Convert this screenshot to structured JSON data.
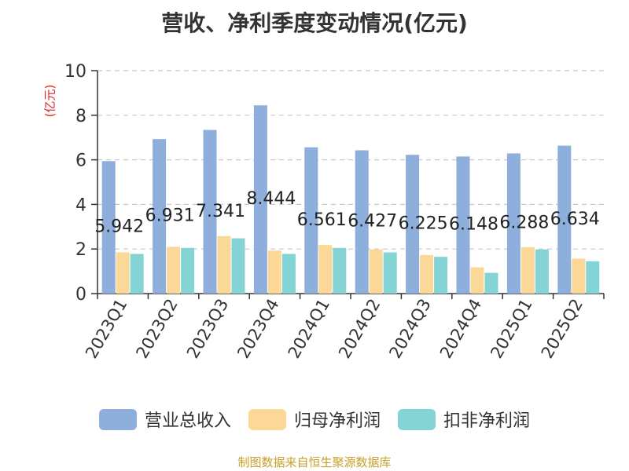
{
  "chart_data": {
    "type": "bar",
    "title": "营收、净利季度变动情况(亿元)",
    "ylabel": "(亿元)",
    "ylim": [
      0,
      10
    ],
    "yticks": [
      0,
      2,
      4,
      6,
      8,
      10
    ],
    "grid": true,
    "legend_position": "bottom",
    "categories": [
      "2023Q1",
      "2023Q2",
      "2023Q3",
      "2023Q4",
      "2024Q1",
      "2024Q2",
      "2024Q3",
      "2024Q4",
      "2025Q1",
      "2025Q2"
    ],
    "series": [
      {
        "name": "营业总收入",
        "color": "#8eaedb",
        "values": [
          5.942,
          6.931,
          7.341,
          8.444,
          6.561,
          6.427,
          6.225,
          6.148,
          6.288,
          6.634
        ],
        "labels": [
          "5.942",
          "6.931",
          "7.341",
          "8.444",
          "6.561",
          "6.427",
          "6.225",
          "6.148",
          "6.288",
          "6.634"
        ]
      },
      {
        "name": "归母净利润",
        "color": "#fbd798",
        "values": [
          1.85,
          2.1,
          2.58,
          1.93,
          2.18,
          1.98,
          1.73,
          1.18,
          2.08,
          1.57
        ]
      },
      {
        "name": "扣非净利润",
        "color": "#84d4d6",
        "values": [
          1.78,
          2.05,
          2.48,
          1.78,
          2.05,
          1.85,
          1.65,
          0.93,
          1.98,
          1.45
        ]
      }
    ]
  },
  "source": "制图数据来自恒生聚源数据库"
}
